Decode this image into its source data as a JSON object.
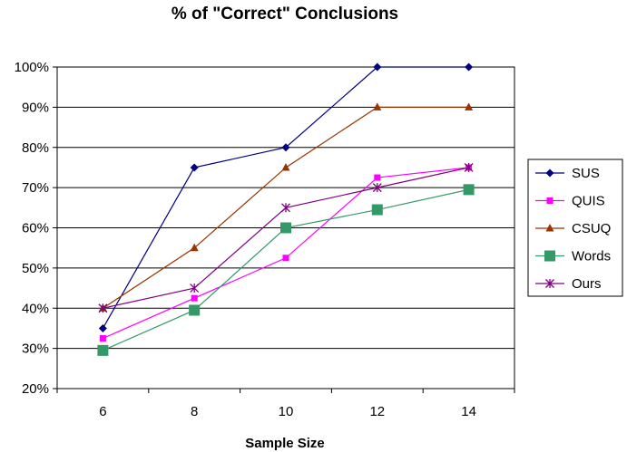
{
  "chart_data": {
    "type": "line",
    "title": "% of \"Correct\" Conclusions",
    "xlabel": "Sample Size",
    "ylabel": "",
    "categories": [
      "6",
      "8",
      "10",
      "12",
      "14"
    ],
    "ylim": [
      20,
      100
    ],
    "ytick_labels": [
      "20%",
      "30%",
      "40%",
      "50%",
      "60%",
      "70%",
      "80%",
      "90%",
      "100%"
    ],
    "grid": "horizontal",
    "legend_position": "right",
    "series": [
      {
        "name": "SUS",
        "values": [
          35,
          75,
          80,
          100,
          100
        ],
        "color": "#000080",
        "marker": "diamond"
      },
      {
        "name": "QUIS",
        "values": [
          32.5,
          42.5,
          52.5,
          72.5,
          75
        ],
        "color": "#ff00ff",
        "marker": "square-small"
      },
      {
        "name": "CSUQ",
        "values": [
          40,
          55,
          75,
          90,
          90
        ],
        "color": "#993300",
        "marker": "triangle"
      },
      {
        "name": "Words",
        "values": [
          29.5,
          39.5,
          60,
          64.5,
          69.5
        ],
        "color": "#339966",
        "marker": "square-large"
      },
      {
        "name": "Ours",
        "values": [
          40,
          45,
          65,
          70,
          75
        ],
        "color": "#800080",
        "marker": "star"
      }
    ]
  }
}
